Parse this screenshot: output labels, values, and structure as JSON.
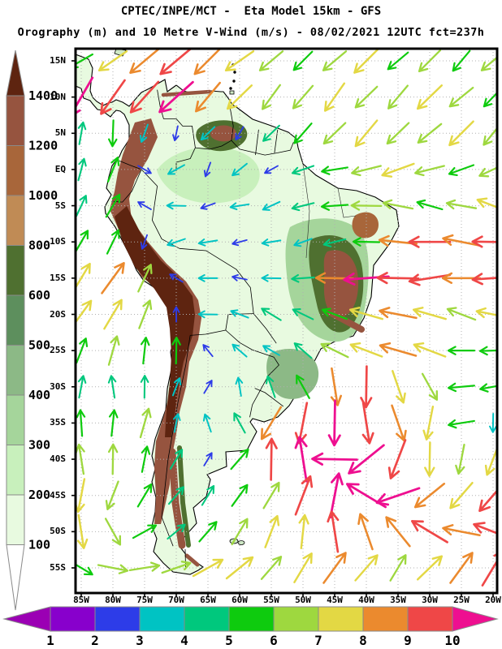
{
  "header": {
    "title": "CPTEC/INPE/MCT -  Eta Model 15km - GFS",
    "subtitle": "Orography (m) and 10 Metre V-Wind (m/s) - 08/02/2021 12UTC fct=237h"
  },
  "chart_data": {
    "type": "map-vector-field",
    "model": "Eta Model 15km - GFS",
    "fields": {
      "shaded": "Orography (m)",
      "vectors": "10 Metre V-Wind (m/s)"
    },
    "valid": "08/02/2021 12UTC fct=237h",
    "projection": {
      "lon_range": [
        -85,
        -20
      ],
      "lat_range": [
        -58.2,
        16.7
      ],
      "grid_step_deg": 5
    },
    "lat_ticks": [
      {
        "label": "15N",
        "lat": 15
      },
      {
        "label": "10N",
        "lat": 10
      },
      {
        "label": "5N",
        "lat": 5
      },
      {
        "label": "EQ",
        "lat": 0
      },
      {
        "label": "5S",
        "lat": -5
      },
      {
        "label": "10S",
        "lat": -10
      },
      {
        "label": "15S",
        "lat": -15
      },
      {
        "label": "20S",
        "lat": -20
      },
      {
        "label": "25S",
        "lat": -25
      },
      {
        "label": "30S",
        "lat": -30
      },
      {
        "label": "35S",
        "lat": -35
      },
      {
        "label": "40S",
        "lat": -40
      },
      {
        "label": "45S",
        "lat": -45
      },
      {
        "label": "50S",
        "lat": -50
      },
      {
        "label": "55S",
        "lat": -55
      }
    ],
    "lon_ticks": [
      {
        "label": "85W",
        "lon": -85
      },
      {
        "label": "80W",
        "lon": -80
      },
      {
        "label": "75W",
        "lon": -75
      },
      {
        "label": "70W",
        "lon": -70
      },
      {
        "label": "65W",
        "lon": -65
      },
      {
        "label": "60W",
        "lon": -60
      },
      {
        "label": "55W",
        "lon": -55
      },
      {
        "label": "50W",
        "lon": -50
      },
      {
        "label": "45W",
        "lon": -45
      },
      {
        "label": "40W",
        "lon": -40
      },
      {
        "label": "35W",
        "lon": -35
      },
      {
        "label": "30W",
        "lon": -30
      },
      {
        "label": "25W",
        "lon": -25
      },
      {
        "label": "20W",
        "lon": -20
      }
    ],
    "orography_scale": {
      "units": "m",
      "levels": [
        100,
        200,
        300,
        400,
        500,
        600,
        800,
        1000,
        1200,
        1400
      ],
      "colors": [
        "#ffffff",
        "#e8fae0",
        "#c8f0bc",
        "#a5d59b",
        "#8cb986",
        "#5d8f5d",
        "#4f7030",
        "#c08b55",
        "#a8663a",
        "#96543f",
        "#5e2410"
      ],
      "border_color": "#8a8a8a"
    },
    "wind_scale": {
      "units": "m/s",
      "levels": [
        1,
        2,
        3,
        4,
        5,
        6,
        7,
        8,
        9,
        10
      ],
      "colors": [
        "#9b00b4",
        "#8800cc",
        "#2d3ce8",
        "#00c3c3",
        "#00c87d",
        "#0ecb0e",
        "#9ed83f",
        "#e3d844",
        "#eb8a2e",
        "#ef4747",
        "#ee0f90"
      ],
      "border_color": "#8a8a8a"
    },
    "wind_field": {
      "comment": "dir = compass direction the arrow points toward (0=N,90=E,180=S,270=W); spd in m/s on the 1-10 colour scale",
      "lons": [
        -85,
        -80,
        -75,
        -70,
        -65,
        -60,
        -55,
        -50,
        -45,
        -40,
        -35,
        -30,
        -25,
        -20
      ],
      "lats": [
        15,
        10,
        5,
        0,
        -5,
        -10,
        -15,
        -20,
        -25,
        -30,
        -35,
        -40,
        -45,
        -50,
        -55
      ],
      "vectors": [
        [
          [
            240,
            5
          ],
          [
            235,
            7
          ],
          [
            230,
            8
          ],
          [
            230,
            9
          ],
          [
            225,
            8
          ],
          [
            235,
            7
          ],
          [
            230,
            6
          ],
          [
            225,
            5
          ],
          [
            230,
            6
          ],
          [
            225,
            7
          ],
          [
            230,
            5
          ],
          [
            225,
            6
          ],
          [
            220,
            5
          ],
          [
            230,
            6
          ]
        ],
        [
          [
            210,
            10
          ],
          [
            215,
            9
          ],
          [
            222,
            9
          ],
          [
            228,
            10
          ],
          [
            220,
            8
          ],
          [
            226,
            7
          ],
          [
            216,
            6
          ],
          [
            221,
            6
          ],
          [
            215,
            7
          ],
          [
            226,
            6
          ],
          [
            220,
            6
          ],
          [
            226,
            7
          ],
          [
            231,
            6
          ],
          [
            224,
            5
          ]
        ],
        [
          [
            10,
            4
          ],
          [
            182,
            5
          ],
          [
            200,
            3
          ],
          [
            192,
            2
          ],
          [
            226,
            3
          ],
          [
            210,
            2
          ],
          [
            226,
            4
          ],
          [
            221,
            5
          ],
          [
            226,
            6
          ],
          [
            220,
            7
          ],
          [
            226,
            6
          ],
          [
            231,
            6
          ],
          [
            225,
            7
          ],
          [
            219,
            6
          ]
        ],
        [
          [
            15,
            4
          ],
          [
            22,
            5
          ],
          [
            120,
            2
          ],
          [
            241,
            3
          ],
          [
            200,
            2
          ],
          [
            231,
            3
          ],
          [
            241,
            2
          ],
          [
            251,
            4
          ],
          [
            261,
            5
          ],
          [
            256,
            6
          ],
          [
            250,
            7
          ],
          [
            256,
            6
          ],
          [
            250,
            5
          ],
          [
            245,
            6
          ]
        ],
        [
          [
            25,
            4
          ],
          [
            31,
            5
          ],
          [
            300,
            2
          ],
          [
            271,
            3
          ],
          [
            250,
            2
          ],
          [
            261,
            3
          ],
          [
            245,
            3
          ],
          [
            256,
            4
          ],
          [
            266,
            5
          ],
          [
            271,
            6
          ],
          [
            281,
            6
          ],
          [
            286,
            5
          ],
          [
            280,
            6
          ],
          [
            291,
            7
          ]
        ],
        [
          [
            30,
            5
          ],
          [
            26,
            5
          ],
          [
            200,
            2
          ],
          [
            251,
            3
          ],
          [
            261,
            3
          ],
          [
            255,
            2
          ],
          [
            261,
            3
          ],
          [
            250,
            3
          ],
          [
            256,
            4
          ],
          [
            271,
            5
          ],
          [
            276,
            8
          ],
          [
            270,
            9
          ],
          [
            281,
            8
          ],
          [
            271,
            9
          ]
        ],
        [
          [
            31,
            7
          ],
          [
            36,
            8
          ],
          [
            25,
            6
          ],
          [
            301,
            2
          ],
          [
            270,
            3
          ],
          [
            281,
            2
          ],
          [
            271,
            3
          ],
          [
            266,
            4
          ],
          [
            271,
            8
          ],
          [
            266,
            10
          ],
          [
            271,
            9
          ],
          [
            261,
            9
          ],
          [
            270,
            8
          ],
          [
            266,
            9
          ]
        ],
        [
          [
            36,
            7
          ],
          [
            31,
            7
          ],
          [
            21,
            6
          ],
          [
            0,
            2
          ],
          [
            271,
            3
          ],
          [
            291,
            3
          ],
          [
            301,
            4
          ],
          [
            296,
            4
          ],
          [
            291,
            5
          ],
          [
            286,
            7
          ],
          [
            281,
            8
          ],
          [
            286,
            7
          ],
          [
            291,
            6
          ],
          [
            281,
            7
          ]
        ],
        [
          [
            21,
            5
          ],
          [
            16,
            6
          ],
          [
            6,
            5
          ],
          [
            1,
            5
          ],
          [
            321,
            2
          ],
          [
            311,
            3
          ],
          [
            300,
            3
          ],
          [
            311,
            4
          ],
          [
            296,
            6
          ],
          [
            291,
            7
          ],
          [
            286,
            8
          ],
          [
            291,
            7
          ],
          [
            270,
            5
          ],
          [
            268,
            5
          ]
        ],
        [
          [
            11,
            4
          ],
          [
            351,
            4
          ],
          [
            1,
            4
          ],
          [
            21,
            3
          ],
          [
            31,
            2
          ],
          [
            351,
            3
          ],
          [
            341,
            4
          ],
          [
            331,
            5
          ],
          [
            171,
            8
          ],
          [
            181,
            9
          ],
          [
            161,
            7
          ],
          [
            151,
            6
          ],
          [
            265,
            5
          ],
          [
            260,
            5
          ]
        ],
        [
          [
            356,
            5
          ],
          [
            6,
            5
          ],
          [
            16,
            6
          ],
          [
            11,
            3
          ],
          [
            341,
            3
          ],
          [
            331,
            4
          ],
          [
            211,
            8
          ],
          [
            191,
            9
          ],
          [
            181,
            10
          ],
          [
            171,
            9
          ],
          [
            161,
            8
          ],
          [
            191,
            7
          ],
          [
            261,
            5
          ],
          [
            181,
            3
          ]
        ],
        [
          [
            351,
            6
          ],
          [
            1,
            6
          ],
          [
            11,
            5
          ],
          [
            31,
            4
          ],
          [
            31,
            2
          ],
          [
            41,
            5
          ],
          [
            1,
            9
          ],
          [
            351,
            10
          ],
          [
            271,
            10
          ],
          [
            231,
            10
          ],
          [
            201,
            9
          ],
          [
            181,
            7
          ],
          [
            191,
            6
          ],
          [
            201,
            7
          ]
        ],
        [
          [
            191,
            7
          ],
          [
            201,
            6
          ],
          [
            31,
            5
          ],
          [
            41,
            4
          ],
          [
            31,
            4
          ],
          [
            36,
            5
          ],
          [
            31,
            6
          ],
          [
            21,
            9
          ],
          [
            11,
            10
          ],
          [
            301,
            10
          ],
          [
            251,
            10
          ],
          [
            231,
            8
          ],
          [
            221,
            7
          ],
          [
            221,
            9
          ]
        ],
        [
          [
            171,
            7
          ],
          [
            151,
            6
          ],
          [
            61,
            5
          ],
          [
            51,
            4
          ],
          [
            41,
            5
          ],
          [
            31,
            6
          ],
          [
            21,
            7
          ],
          [
            6,
            7
          ],
          [
            351,
            9
          ],
          [
            341,
            8
          ],
          [
            321,
            8
          ],
          [
            301,
            9
          ],
          [
            281,
            8
          ],
          [
            291,
            9
          ]
        ],
        [
          [
            121,
            5
          ],
          [
            101,
            6
          ],
          [
            81,
            6
          ],
          [
            71,
            6
          ],
          [
            61,
            7
          ],
          [
            51,
            7
          ],
          [
            41,
            6
          ],
          [
            31,
            7
          ],
          [
            36,
            8
          ],
          [
            41,
            7
          ],
          [
            31,
            6
          ],
          [
            46,
            7
          ],
          [
            36,
            8
          ],
          [
            31,
            9
          ]
        ]
      ]
    },
    "grid_color": "#b0b0b0",
    "frame_color": "#000000"
  }
}
